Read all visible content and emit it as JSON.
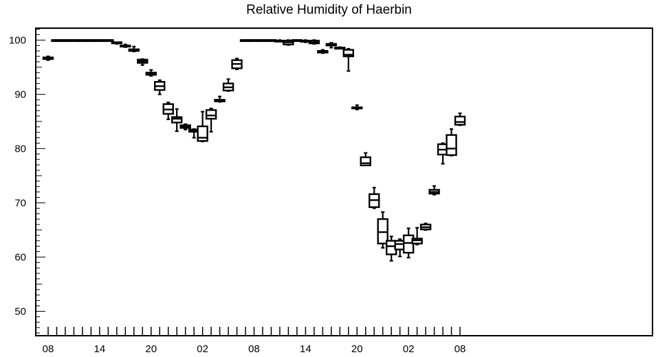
{
  "chart_data": {
    "type": "box",
    "title": "Relative Humidity of Haerbin",
    "xlabel": "",
    "ylabel": "",
    "ylim": [
      45.5,
      102.2
    ],
    "yticks": [
      50,
      60,
      70,
      80,
      90,
      100
    ],
    "x_tick_labels": [
      {
        "hour_index": 0,
        "label": "08"
      },
      {
        "hour_index": 6,
        "label": "14"
      },
      {
        "hour_index": 12,
        "label": "20"
      },
      {
        "hour_index": 18,
        "label": "02"
      },
      {
        "hour_index": 24,
        "label": "08"
      },
      {
        "hour_index": 30,
        "label": "14"
      },
      {
        "hour_index": 36,
        "label": "20"
      },
      {
        "hour_index": 42,
        "label": "02"
      },
      {
        "hour_index": 48,
        "label": "08"
      }
    ],
    "grid": false,
    "legend": "none",
    "colors": {
      "box": "#000000",
      "background": "#ffffff"
    },
    "boxes": [
      {
        "x": 0,
        "min": 96.3,
        "q1": 96.5,
        "median": 96.6,
        "q3": 96.8,
        "max": 97.0
      },
      {
        "x": 1,
        "min": 100,
        "q1": 100,
        "median": 100,
        "q3": 100,
        "max": 100
      },
      {
        "x": 2,
        "min": 100,
        "q1": 100,
        "median": 100,
        "q3": 100,
        "max": 100
      },
      {
        "x": 3,
        "min": 100,
        "q1": 100,
        "median": 100,
        "q3": 100,
        "max": 100
      },
      {
        "x": 4,
        "min": 100,
        "q1": 100,
        "median": 100,
        "q3": 100,
        "max": 100
      },
      {
        "x": 5,
        "min": 100,
        "q1": 100,
        "median": 100,
        "q3": 100,
        "max": 100
      },
      {
        "x": 6,
        "min": 100,
        "q1": 100,
        "median": 100,
        "q3": 100,
        "max": 100
      },
      {
        "x": 7,
        "min": 99.9,
        "q1": 100,
        "median": 100,
        "q3": 100,
        "max": 100
      },
      {
        "x": 8,
        "min": 99.3,
        "q1": 99.4,
        "median": 99.5,
        "q3": 99.6,
        "max": 99.6
      },
      {
        "x": 9,
        "min": 98.7,
        "q1": 98.8,
        "median": 98.9,
        "q3": 99.0,
        "max": 99.2
      },
      {
        "x": 10,
        "min": 97.9,
        "q1": 98.0,
        "median": 98.2,
        "q3": 98.3,
        "max": 98.8
      },
      {
        "x": 11,
        "min": 95.4,
        "q1": 95.8,
        "median": 96.1,
        "q3": 96.4,
        "max": 96.5
      },
      {
        "x": 12,
        "min": 93.4,
        "q1": 93.6,
        "median": 93.8,
        "q3": 94.0,
        "max": 94.5
      },
      {
        "x": 13,
        "min": 90.0,
        "q1": 90.8,
        "median": 91.5,
        "q3": 92.3,
        "max": 92.6
      },
      {
        "x": 14,
        "min": 85.4,
        "q1": 86.4,
        "median": 87.2,
        "q3": 88.2,
        "max": 88.5
      },
      {
        "x": 15,
        "min": 83.2,
        "q1": 84.8,
        "median": 85.5,
        "q3": 85.8,
        "max": 87.3
      },
      {
        "x": 16,
        "min": 83.5,
        "q1": 83.8,
        "median": 84.0,
        "q3": 84.3,
        "max": 84.5
      },
      {
        "x": 17,
        "min": 82.0,
        "q1": 83.1,
        "median": 83.3,
        "q3": 83.5,
        "max": 83.6
      },
      {
        "x": 18,
        "min": 81.3,
        "q1": 81.4,
        "median": 82.0,
        "q3": 84.1,
        "max": 86.8
      },
      {
        "x": 19,
        "min": 83.1,
        "q1": 85.5,
        "median": 86.1,
        "q3": 87.1,
        "max": 87.4
      },
      {
        "x": 20,
        "min": 88.6,
        "q1": 88.7,
        "median": 88.9,
        "q3": 89.0,
        "max": 89.6
      },
      {
        "x": 21,
        "min": 90.6,
        "q1": 90.7,
        "median": 91.3,
        "q3": 92.0,
        "max": 92.8
      },
      {
        "x": 22,
        "min": 94.6,
        "q1": 94.8,
        "median": 95.6,
        "q3": 96.3,
        "max": 96.6
      },
      {
        "x": 23,
        "min": 100,
        "q1": 100,
        "median": 100,
        "q3": 100,
        "max": 100
      },
      {
        "x": 24,
        "min": 100,
        "q1": 100,
        "median": 100,
        "q3": 100,
        "max": 100
      },
      {
        "x": 25,
        "min": 100,
        "q1": 100,
        "median": 100,
        "q3": 100,
        "max": 100
      },
      {
        "x": 26,
        "min": 100,
        "q1": 100,
        "median": 100,
        "q3": 100,
        "max": 100
      },
      {
        "x": 27,
        "min": 99.8,
        "q1": 99.8,
        "median": 99.9,
        "q3": 99.9,
        "max": 100
      },
      {
        "x": 28,
        "min": 99.1,
        "q1": 99.2,
        "median": 99.6,
        "q3": 99.9,
        "max": 100
      },
      {
        "x": 29,
        "min": 99.9,
        "q1": 99.9,
        "median": 100,
        "q3": 100,
        "max": 100
      },
      {
        "x": 30,
        "min": 99.6,
        "q1": 99.7,
        "median": 99.8,
        "q3": 99.9,
        "max": 100
      },
      {
        "x": 31,
        "min": 99.3,
        "q1": 99.4,
        "median": 99.6,
        "q3": 99.9,
        "max": 100
      },
      {
        "x": 32,
        "min": 97.6,
        "q1": 97.7,
        "median": 97.9,
        "q3": 98.0,
        "max": 98.2
      },
      {
        "x": 33,
        "min": 98.6,
        "q1": 99.0,
        "median": 99.2,
        "q3": 99.3,
        "max": 99.5
      },
      {
        "x": 34,
        "min": 98.5,
        "q1": 98.5,
        "median": 98.6,
        "q3": 98.6,
        "max": 98.7
      },
      {
        "x": 35,
        "min": 94.3,
        "q1": 97.0,
        "median": 97.3,
        "q3": 98.2,
        "max": 98.4
      },
      {
        "x": 36,
        "min": 87.2,
        "q1": 87.4,
        "median": 87.5,
        "q3": 87.6,
        "max": 88.0
      },
      {
        "x": 37,
        "min": 76.9,
        "q1": 76.9,
        "median": 77.3,
        "q3": 78.4,
        "max": 79.2
      },
      {
        "x": 38,
        "min": 69.0,
        "q1": 69.2,
        "median": 70.5,
        "q3": 71.6,
        "max": 72.8
      },
      {
        "x": 39,
        "min": 61.7,
        "q1": 62.5,
        "median": 64.6,
        "q3": 67.0,
        "max": 68.3
      },
      {
        "x": 40,
        "min": 59.3,
        "q1": 60.5,
        "median": 62.0,
        "q3": 63.0,
        "max": 63.8
      },
      {
        "x": 41,
        "min": 60.1,
        "q1": 61.4,
        "median": 62.4,
        "q3": 63.0,
        "max": 63.3
      },
      {
        "x": 42,
        "min": 59.9,
        "q1": 60.8,
        "median": 62.6,
        "q3": 64.0,
        "max": 65.3
      },
      {
        "x": 43,
        "min": 62.3,
        "q1": 62.5,
        "median": 63.1,
        "q3": 63.4,
        "max": 65.4
      },
      {
        "x": 44,
        "min": 65.0,
        "q1": 65.1,
        "median": 65.5,
        "q3": 66.0,
        "max": 66.2
      },
      {
        "x": 45,
        "min": 71.5,
        "q1": 71.7,
        "median": 72.0,
        "q3": 72.4,
        "max": 73.1
      },
      {
        "x": 46,
        "min": 77.2,
        "q1": 78.9,
        "median": 79.8,
        "q3": 80.8,
        "max": 81.0
      },
      {
        "x": 47,
        "min": 78.7,
        "q1": 78.8,
        "median": 80.0,
        "q3": 82.5,
        "max": 83.6
      },
      {
        "x": 48,
        "min": 84.3,
        "q1": 84.4,
        "median": 84.9,
        "q3": 85.9,
        "max": 86.5
      }
    ]
  }
}
